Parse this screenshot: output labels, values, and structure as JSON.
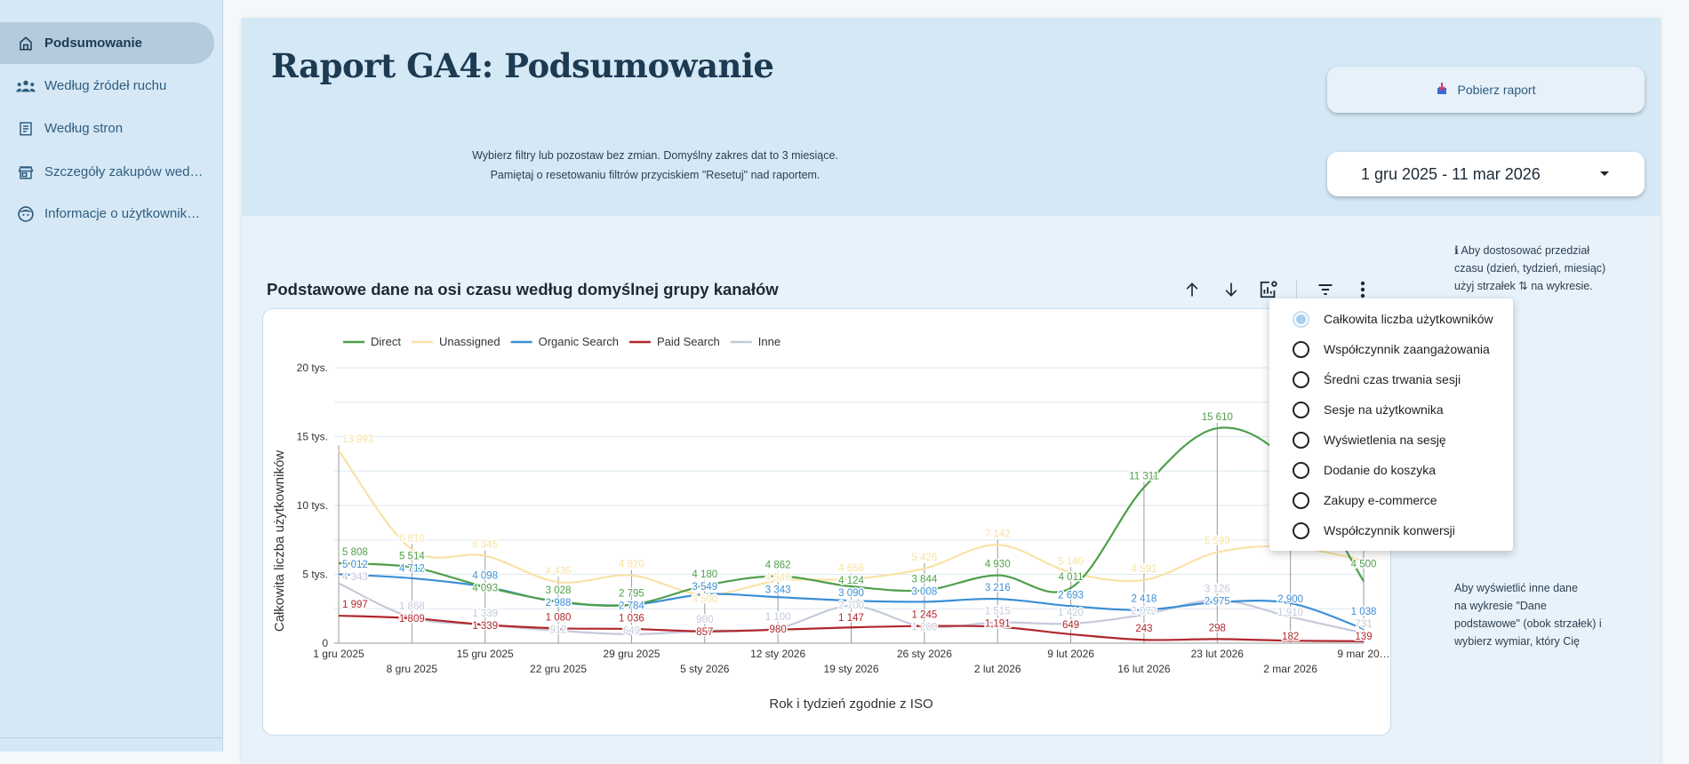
{
  "sidebar": {
    "items": [
      {
        "label": "Podsumowanie",
        "icon": "home-icon",
        "active": true
      },
      {
        "label": "Według źródeł ruchu",
        "icon": "groups-icon"
      },
      {
        "label": "Według stron",
        "icon": "article-icon"
      },
      {
        "label": "Szczegóły zakupów wed…",
        "icon": "store-icon"
      },
      {
        "label": "Informacje o użytkownik…",
        "icon": "face-icon"
      }
    ]
  },
  "header": {
    "title": "Raport GA4: Podsumowanie",
    "instructions": [
      "Wybierz filtry lub pozostaw bez zmian. Domyślny zakres dat to 3 miesiące.",
      "Pamiętaj o resetowaniu filtrów przyciskiem \"Resetuj\" nad raportem."
    ],
    "download_label": "Pobierz raport",
    "date_range": "1 gru 2025 - 11 mar 2026"
  },
  "section": {
    "title": "Podstawowe dane na osi czasu według domyślnej grupy kanałów",
    "info": [
      "ℹ  Aby dostosować przedział",
      "czasu (dzień, tydzień, miesiąc)",
      "użyj strzałek ⇅ na wykresie.",
      "",
      "Aby wyświetlić inne dane",
      "na wykresie \"Dane",
      "podstawowe\" (obok strzałek) i",
      "wybierz wymiar, który Cię"
    ]
  },
  "metric_menu": {
    "items": [
      {
        "label": "Całkowita liczba użytkowników",
        "selected": true
      },
      {
        "label": "Współczynnik zaangażowania"
      },
      {
        "label": "Średni czas trwania sesji"
      },
      {
        "label": "Sesje na użytkownika"
      },
      {
        "label": "Wyświetlenia na sesję"
      },
      {
        "label": "Dodanie do koszyka"
      },
      {
        "label": "Zakupy e-commerce"
      },
      {
        "label": "Współczynnik konwersji"
      }
    ]
  },
  "chart_data": {
    "type": "line",
    "xlabel": "Rok i tydzień zgodnie z ISO",
    "ylabel": "Całkowita liczba użytkowników",
    "ylim": [
      0,
      20000
    ],
    "yticks": [
      {
        "v": 0,
        "label": "0"
      },
      {
        "v": 5000,
        "label": "5 tys."
      },
      {
        "v": 10000,
        "label": "10 tys."
      },
      {
        "v": 15000,
        "label": "15 tys."
      },
      {
        "v": 20000,
        "label": "20 tys."
      }
    ],
    "legend_position": "top-left",
    "categories": [
      "1 gru 2025",
      "8 gru 2025",
      "15 gru 2025",
      "22 gru 2025",
      "29 gru 2025",
      "5 sty 2026",
      "12 sty 2026",
      "19 sty 2026",
      "26 sty 2026",
      "2 lut 2026",
      "9 lut 2026",
      "16 lut 2026",
      "23 lut 2026",
      "2 mar 2026",
      "9 mar 20…"
    ],
    "series": [
      {
        "name": "Unassigned",
        "color": "#f8e2a6",
        "values": [
          13993,
          6810,
          6345,
          4435,
          4920,
          3500,
          4540,
          4658,
          5426,
          7142,
          5140,
          4591,
          6599,
          7000,
          6000
        ]
      },
      {
        "name": "Inne",
        "color": "#c5cadb",
        "values": [
          4343,
          1868,
          1339,
          912,
          649,
          900,
          1100,
          2700,
          1200,
          1515,
          1420,
          2072,
          3126,
          1910,
          731
        ]
      },
      {
        "name": "Organic Search",
        "color": "#3b8fd5",
        "values": [
          5012,
          4712,
          4098,
          2988,
          2784,
          3549,
          3343,
          3090,
          3008,
          3216,
          2693,
          2418,
          2975,
          2900,
          1038
        ]
      },
      {
        "name": "Direct",
        "color": "#4e9f4a",
        "values": [
          5808,
          5514,
          4093,
          3028,
          2795,
          4180,
          4862,
          4124,
          3844,
          4930,
          4011,
          11311,
          15610,
          13000,
          4500
        ]
      },
      {
        "name": "Paid Search",
        "color": "#b0272c",
        "values": [
          1997,
          1809,
          1339,
          1080,
          1036,
          857,
          980,
          1147,
          1245,
          1191,
          649,
          243,
          298,
          182,
          139
        ]
      }
    ],
    "legend_order": [
      "Direct",
      "Unassigned",
      "Organic Search",
      "Paid Search",
      "Inne"
    ]
  }
}
